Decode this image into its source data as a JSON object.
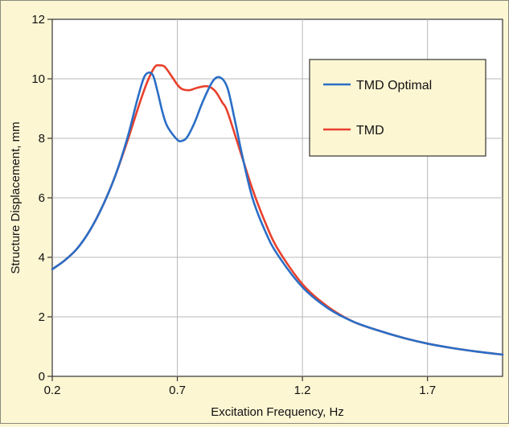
{
  "chart_data": {
    "type": "line",
    "title": "",
    "xlabel": "Excitation Frequency, Hz",
    "ylabel": "Structure Displacement, mm",
    "xlim": [
      0.2,
      2.0
    ],
    "ylim": [
      0,
      12
    ],
    "xticks": [
      0.2,
      0.7,
      1.2,
      1.7
    ],
    "xtick_labels": [
      "0.2",
      "0.7",
      "1.2",
      "1.7"
    ],
    "yticks": [
      0,
      2,
      4,
      6,
      8,
      10,
      12
    ],
    "ytick_labels": [
      "0",
      "2",
      "4",
      "6",
      "8",
      "10",
      "12"
    ],
    "grid": true,
    "legend": "top-right",
    "series": [
      {
        "name": "TMD Optimal",
        "color": "#2a6ec6",
        "x": [
          0.2,
          0.25,
          0.3,
          0.35,
          0.4,
          0.45,
          0.5,
          0.54,
          0.57,
          0.6,
          0.62,
          0.64,
          0.66,
          0.7,
          0.72,
          0.74,
          0.77,
          0.8,
          0.84,
          0.87,
          0.9,
          0.93,
          0.96,
          1.0,
          1.05,
          1.1,
          1.2,
          1.3,
          1.4,
          1.5,
          1.6,
          1.7,
          1.8,
          1.9,
          2.0
        ],
        "y": [
          3.6,
          3.9,
          4.3,
          4.9,
          5.7,
          6.7,
          8.0,
          9.3,
          10.1,
          10.15,
          9.6,
          8.9,
          8.4,
          7.95,
          7.92,
          8.05,
          8.55,
          9.2,
          9.9,
          10.05,
          9.7,
          8.6,
          7.4,
          6.0,
          4.9,
          4.1,
          3.0,
          2.3,
          1.85,
          1.55,
          1.3,
          1.1,
          0.95,
          0.83,
          0.73
        ]
      },
      {
        "name": "TMD",
        "color": "#e8402c",
        "x": [
          0.2,
          0.25,
          0.3,
          0.35,
          0.4,
          0.45,
          0.5,
          0.55,
          0.58,
          0.61,
          0.63,
          0.65,
          0.68,
          0.7,
          0.72,
          0.75,
          0.78,
          0.82,
          0.85,
          0.88,
          0.9,
          0.95,
          1.0,
          1.05,
          1.1,
          1.2,
          1.3,
          1.4,
          1.5,
          1.6,
          1.7,
          1.8,
          1.9,
          2.0
        ],
        "y": [
          3.6,
          3.9,
          4.3,
          4.9,
          5.7,
          6.7,
          7.9,
          9.2,
          9.9,
          10.4,
          10.45,
          10.4,
          10.05,
          9.8,
          9.65,
          9.62,
          9.7,
          9.75,
          9.6,
          9.2,
          8.9,
          7.6,
          6.3,
          5.2,
          4.3,
          3.1,
          2.35,
          1.85,
          1.55,
          1.3,
          1.1,
          0.95,
          0.83,
          0.73
        ]
      }
    ]
  }
}
